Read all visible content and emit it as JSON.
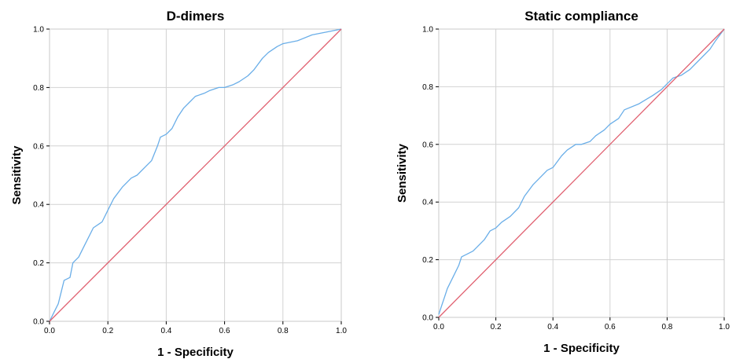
{
  "chart_data": [
    {
      "type": "line",
      "title": "D-dimers",
      "xlabel": "1 - Specificity",
      "ylabel": "Sensitivity",
      "xlim": [
        0,
        1
      ],
      "ylim": [
        0,
        1
      ],
      "xticks": [
        "0.0",
        "0.2",
        "0.4",
        "0.6",
        "0.8",
        "1.0"
      ],
      "yticks": [
        "0.0",
        "0.2",
        "0.4",
        "0.6",
        "0.8",
        "1.0"
      ],
      "grid": true,
      "series": [
        {
          "color": "#6aaee8",
          "x": [
            0,
            0.01,
            0.02,
            0.03,
            0.04,
            0.05,
            0.07,
            0.08,
            0.1,
            0.12,
            0.15,
            0.18,
            0.2,
            0.22,
            0.25,
            0.28,
            0.3,
            0.33,
            0.35,
            0.37,
            0.38,
            0.4,
            0.42,
            0.44,
            0.46,
            0.48,
            0.5,
            0.53,
            0.55,
            0.58,
            0.6,
            0.63,
            0.65,
            0.68,
            0.7,
            0.73,
            0.75,
            0.78,
            0.8,
            0.85,
            0.9,
            0.95,
            1.0
          ],
          "y": [
            0,
            0.02,
            0.04,
            0.06,
            0.1,
            0.14,
            0.15,
            0.2,
            0.22,
            0.26,
            0.32,
            0.34,
            0.38,
            0.42,
            0.46,
            0.49,
            0.5,
            0.53,
            0.55,
            0.6,
            0.63,
            0.64,
            0.66,
            0.7,
            0.73,
            0.75,
            0.77,
            0.78,
            0.79,
            0.8,
            0.8,
            0.81,
            0.82,
            0.84,
            0.86,
            0.9,
            0.92,
            0.94,
            0.95,
            0.96,
            0.98,
            0.99,
            1.0
          ]
        },
        {
          "color": "#e06070",
          "x": [
            0,
            1
          ],
          "y": [
            0,
            1
          ]
        }
      ]
    },
    {
      "type": "line",
      "title": "Static compliance",
      "xlabel": "1 - Specificity",
      "ylabel": "Sensitivity",
      "xlim": [
        0,
        1
      ],
      "ylim": [
        0,
        1
      ],
      "xticks": [
        "0.0",
        "0.2",
        "0.4",
        "0.6",
        "0.8",
        "1.0"
      ],
      "yticks": [
        "0.0",
        "0.2",
        "0.4",
        "0.6",
        "0.8",
        "1.0"
      ],
      "grid": true,
      "series": [
        {
          "color": "#6aaee8",
          "x": [
            0,
            0.01,
            0.02,
            0.03,
            0.05,
            0.07,
            0.08,
            0.1,
            0.12,
            0.14,
            0.16,
            0.18,
            0.2,
            0.22,
            0.25,
            0.28,
            0.3,
            0.33,
            0.35,
            0.38,
            0.4,
            0.43,
            0.45,
            0.48,
            0.5,
            0.53,
            0.55,
            0.58,
            0.6,
            0.63,
            0.65,
            0.7,
            0.75,
            0.78,
            0.8,
            0.82,
            0.85,
            0.88,
            0.9,
            0.93,
            0.95,
            0.97,
            1.0
          ],
          "y": [
            0.01,
            0.04,
            0.07,
            0.1,
            0.14,
            0.18,
            0.21,
            0.22,
            0.23,
            0.25,
            0.27,
            0.3,
            0.31,
            0.33,
            0.35,
            0.38,
            0.42,
            0.46,
            0.48,
            0.51,
            0.52,
            0.56,
            0.58,
            0.6,
            0.6,
            0.61,
            0.63,
            0.65,
            0.67,
            0.69,
            0.72,
            0.74,
            0.77,
            0.79,
            0.81,
            0.83,
            0.84,
            0.86,
            0.88,
            0.91,
            0.93,
            0.96,
            1.0
          ]
        },
        {
          "color": "#e06070",
          "x": [
            0,
            1
          ],
          "y": [
            0,
            1
          ]
        }
      ]
    }
  ]
}
